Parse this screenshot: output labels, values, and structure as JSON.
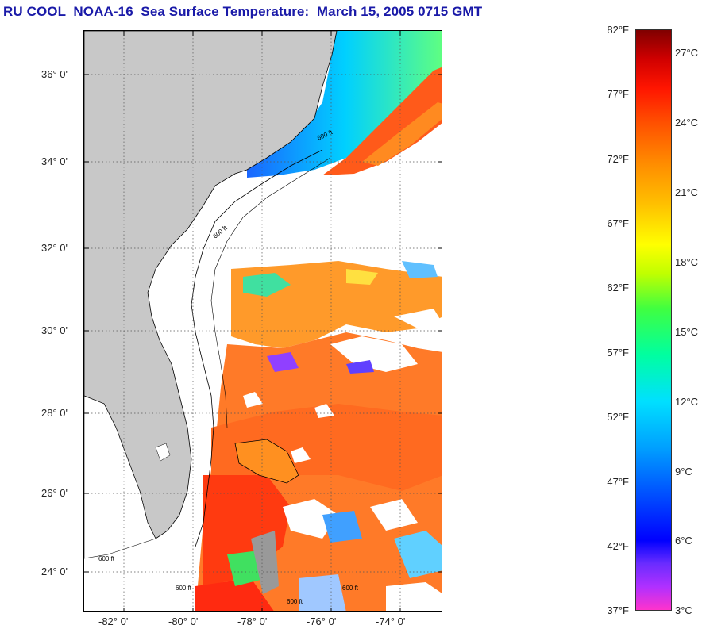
{
  "title": "RU COOL  NOAA-16  Sea Surface Temperature:  March 15, 2005 0715 GMT",
  "map": {
    "lat_labels": [
      "36° 0'",
      "34° 0'",
      "32° 0'",
      "30° 0'",
      "28° 0'",
      "26° 0'",
      "24° 0'"
    ],
    "lon_labels": [
      "-82° 0'",
      "-80° 0'",
      "-78° 0'",
      "-76° 0'",
      "-74° 0'"
    ],
    "contour_labels": [
      "600 ft"
    ],
    "colors": {
      "land": "#c8c8c8",
      "cloud": "#ffffff",
      "coastline": "#000000"
    }
  },
  "colorbar": {
    "fahrenheit_labels": [
      "82°F",
      "77°F",
      "72°F",
      "67°F",
      "62°F",
      "57°F",
      "52°F",
      "47°F",
      "42°F",
      "37°F"
    ],
    "celsius_labels": [
      "27°C",
      "24°C",
      "21°C",
      "18°C",
      "15°C",
      "12°C",
      "9°C",
      "6°C",
      "3°C"
    ],
    "range_f": [
      37,
      82
    ],
    "range_c": [
      3,
      28
    ]
  }
}
